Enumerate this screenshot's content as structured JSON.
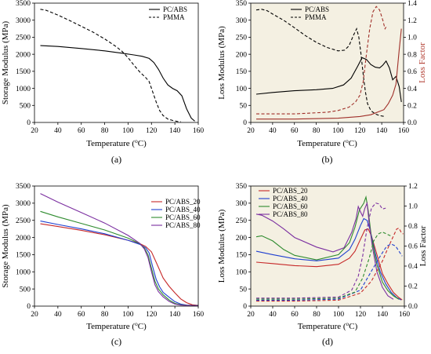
{
  "chart_data": [
    {
      "panel": "(a)",
      "type": "line",
      "xlabel": "Temperature (",
      "xlabel_sup": "o",
      "xlabel_end": "C)",
      "ylabel": "Storage Modulus (MPa)",
      "xlim": [
        20,
        160
      ],
      "ylim": [
        0,
        3500
      ],
      "xticks": [
        20,
        40,
        60,
        80,
        100,
        120,
        140,
        160
      ],
      "yticks": [
        0,
        500,
        1000,
        1500,
        2000,
        2500,
        3000,
        3500
      ],
      "background": "#ffffff",
      "grid": false,
      "legend": "top-right",
      "series": [
        {
          "name": "PC/ABS",
          "color": "#000000",
          "dash": "solid",
          "x": [
            25,
            40,
            60,
            80,
            95,
            105,
            112,
            118,
            122,
            126,
            130,
            134,
            138,
            142,
            146,
            150,
            154,
            157
          ],
          "y": [
            2255,
            2230,
            2170,
            2100,
            2030,
            1980,
            1940,
            1880,
            1760,
            1560,
            1300,
            1100,
            1000,
            930,
            780,
            400,
            130,
            40
          ]
        },
        {
          "name": "PMMA",
          "color": "#000000",
          "dash": "dashed",
          "x": [
            25,
            30,
            40,
            50,
            60,
            70,
            80,
            90,
            95,
            100,
            105,
            110,
            115,
            118,
            121,
            124,
            127,
            130,
            134,
            138,
            142,
            145
          ],
          "y": [
            3320,
            3290,
            3150,
            2990,
            2820,
            2650,
            2450,
            2220,
            2080,
            1900,
            1680,
            1480,
            1320,
            1200,
            900,
            600,
            350,
            200,
            100,
            60,
            30,
            20
          ]
        }
      ]
    },
    {
      "panel": "(b)",
      "type": "line",
      "xlabel": "Temperature (",
      "xlabel_sup": "o",
      "xlabel_end": "C)",
      "ylabel": "Loss Modulus (MPa)",
      "y2label": "Loss Factor",
      "xlim": [
        20,
        160
      ],
      "ylim": [
        0,
        350
      ],
      "y2lim": [
        0,
        1.4
      ],
      "xticks": [
        20,
        40,
        60,
        80,
        100,
        120,
        140,
        160
      ],
      "yticks": [
        0,
        50,
        100,
        150,
        200,
        250,
        300,
        350
      ],
      "y2ticks": [
        0.0,
        0.2,
        0.4,
        0.6,
        0.8,
        1.0,
        1.2,
        1.4
      ],
      "background": "#f4f0e2",
      "grid": false,
      "legend": "top-center",
      "series": [
        {
          "name": "PC/ABS",
          "axis": "y",
          "color": "#000000",
          "dash": "solid",
          "x": [
            25,
            40,
            60,
            80,
            95,
            105,
            112,
            118,
            122,
            126,
            130,
            134,
            138,
            141,
            144,
            147,
            150,
            153,
            156,
            158
          ],
          "y": [
            83,
            88,
            93,
            96,
            100,
            110,
            130,
            165,
            190,
            185,
            170,
            162,
            160,
            168,
            180,
            160,
            125,
            135,
            105,
            60
          ]
        },
        {
          "name": "PMMA",
          "axis": "y",
          "color": "#000000",
          "dash": "dashed",
          "x": [
            25,
            30,
            35,
            40,
            50,
            60,
            70,
            80,
            90,
            100,
            106,
            110,
            114,
            117,
            119,
            121,
            123,
            125,
            127,
            130,
            134,
            138,
            142
          ],
          "y": [
            330,
            332,
            328,
            318,
            300,
            278,
            255,
            235,
            220,
            210,
            212,
            225,
            255,
            275,
            250,
            200,
            140,
            90,
            55,
            35,
            25,
            20,
            18
          ]
        },
        {
          "name": "",
          "axis": "y2",
          "color": "#a0302a",
          "dash": "solid",
          "x": [
            25,
            60,
            100,
            120,
            130,
            138,
            142,
            146,
            150,
            153,
            156,
            158
          ],
          "y": [
            0.04,
            0.04,
            0.05,
            0.07,
            0.09,
            0.13,
            0.15,
            0.22,
            0.32,
            0.45,
            0.85,
            1.1
          ]
        },
        {
          "name": "",
          "axis": "y2",
          "color": "#a0302a",
          "dash": "dashed",
          "x": [
            25,
            60,
            90,
            100,
            110,
            116,
            120,
            123,
            126,
            129,
            132,
            135,
            138,
            141,
            143,
            144
          ],
          "y": [
            0.1,
            0.1,
            0.12,
            0.14,
            0.18,
            0.24,
            0.32,
            0.48,
            0.8,
            1.1,
            1.3,
            1.36,
            1.32,
            1.2,
            1.1,
            1.12
          ]
        }
      ]
    },
    {
      "panel": "(c)",
      "type": "line",
      "xlabel": "Temperature (",
      "xlabel_sup": "o",
      "xlabel_end": "C)",
      "ylabel": "Storage Modulus (MPa)",
      "xlim": [
        20,
        160
      ],
      "ylim": [
        0,
        3500
      ],
      "xticks": [
        20,
        40,
        60,
        80,
        100,
        120,
        140,
        160
      ],
      "yticks": [
        0,
        500,
        1000,
        1500,
        2000,
        2500,
        3000,
        3500
      ],
      "background": "#ffffff",
      "grid": false,
      "legend": "top-right",
      "series": [
        {
          "name": "PC/ABS_20",
          "color": "#c62828",
          "dash": "solid",
          "x": [
            25,
            40,
            60,
            80,
            100,
            110,
            115,
            120,
            125,
            130,
            135,
            140,
            145,
            150,
            155,
            160
          ],
          "y": [
            2400,
            2320,
            2210,
            2080,
            1920,
            1820,
            1740,
            1580,
            1200,
            820,
            580,
            390,
            210,
            100,
            40,
            20
          ]
        },
        {
          "name": "PC/ABS_40",
          "color": "#1f3fd0",
          "dash": "solid",
          "x": [
            25,
            40,
            60,
            80,
            100,
            110,
            115,
            118,
            121,
            124,
            127,
            130,
            135,
            140,
            145,
            150,
            155,
            160
          ],
          "y": [
            2480,
            2380,
            2250,
            2110,
            1920,
            1800,
            1700,
            1550,
            1150,
            780,
            560,
            400,
            260,
            130,
            60,
            30,
            20,
            15
          ]
        },
        {
          "name": "PC/ABS_60",
          "color": "#2e8b2e",
          "dash": "solid",
          "x": [
            25,
            40,
            60,
            80,
            100,
            110,
            114,
            117,
            120,
            123,
            126,
            130,
            135,
            140,
            145,
            150,
            160
          ],
          "y": [
            2760,
            2600,
            2410,
            2220,
            1980,
            1820,
            1690,
            1500,
            1100,
            720,
            500,
            330,
            180,
            80,
            40,
            25,
            15
          ]
        },
        {
          "name": "PC/ABS_80",
          "color": "#7b2fa0",
          "dash": "solid",
          "x": [
            25,
            40,
            60,
            80,
            100,
            110,
            114,
            117,
            120,
            123,
            126,
            130,
            135,
            140,
            145,
            150,
            160
          ],
          "y": [
            3280,
            3030,
            2730,
            2420,
            2060,
            1830,
            1660,
            1420,
            1000,
            620,
            420,
            270,
            140,
            60,
            30,
            20,
            15
          ]
        }
      ]
    },
    {
      "panel": "(d)",
      "type": "line",
      "xlabel": "Temperature (",
      "xlabel_sup": "o",
      "xlabel_end": "C)",
      "ylabel": "Loss Modulus (MPa)",
      "y2label": "Loss Factor",
      "xlim": [
        20,
        160
      ],
      "ylim": [
        0,
        350
      ],
      "y2lim": [
        0,
        1.2
      ],
      "xticks": [
        20,
        40,
        60,
        80,
        100,
        120,
        140,
        160
      ],
      "yticks": [
        0,
        50,
        100,
        150,
        200,
        250,
        300,
        350
      ],
      "y2ticks": [
        0.0,
        0.2,
        0.4,
        0.6,
        0.8,
        1.0,
        1.2
      ],
      "background": "#f4f0e2",
      "grid": false,
      "legend": "top-left",
      "series": [
        {
          "name": "PC/ABS_20",
          "axis": "y",
          "color": "#c62828",
          "dash": "solid",
          "x": [
            25,
            40,
            60,
            80,
            100,
            110,
            115,
            120,
            124,
            127,
            130,
            135,
            140,
            145,
            150,
            155,
            158
          ],
          "y": [
            128,
            124,
            118,
            115,
            122,
            140,
            160,
            195,
            222,
            225,
            205,
            150,
            95,
            65,
            40,
            25,
            18
          ]
        },
        {
          "name": "PC/ABS_40",
          "axis": "y",
          "color": "#1f3fd0",
          "dash": "solid",
          "x": [
            25,
            40,
            60,
            80,
            100,
            110,
            115,
            120,
            123,
            126,
            129,
            133,
            138,
            143,
            148,
            153,
            157
          ],
          "y": [
            160,
            150,
            138,
            132,
            140,
            165,
            195,
            235,
            255,
            250,
            220,
            160,
            100,
            65,
            40,
            25,
            18
          ]
        },
        {
          "name": "PC/ABS_60",
          "axis": "y",
          "color": "#2e8b2e",
          "dash": "solid",
          "x": [
            25,
            30,
            40,
            50,
            60,
            80,
            100,
            110,
            115,
            119,
            121,
            123,
            125,
            127,
            130,
            135,
            140,
            145,
            150,
            155
          ],
          "y": [
            202,
            205,
            190,
            165,
            148,
            135,
            150,
            185,
            230,
            280,
            290,
            300,
            318,
            280,
            200,
            120,
            70,
            45,
            30,
            20
          ]
        },
        {
          "name": "PC/ABS_80",
          "axis": "y",
          "color": "#7b2fa0",
          "dash": "solid",
          "x": [
            25,
            30,
            40,
            50,
            60,
            80,
            95,
            105,
            112,
            116,
            118,
            120,
            122,
            124,
            126,
            128,
            131,
            135,
            140,
            145,
            150
          ],
          "y": [
            268,
            265,
            248,
            225,
            200,
            172,
            158,
            170,
            215,
            255,
            290,
            275,
            262,
            285,
            300,
            240,
            170,
            100,
            55,
            30,
            20
          ]
        },
        {
          "name": "",
          "axis": "y2",
          "color": "#c62828",
          "dash": "dashed",
          "x": [
            25,
            60,
            100,
            120,
            130,
            140,
            145,
            150,
            153,
            155,
            157,
            159
          ],
          "y": [
            0.05,
            0.05,
            0.06,
            0.13,
            0.25,
            0.45,
            0.58,
            0.7,
            0.77,
            0.78,
            0.74,
            0.72
          ]
        },
        {
          "name": "",
          "axis": "y2",
          "color": "#1f3fd0",
          "dash": "dashed",
          "x": [
            25,
            60,
            100,
            120,
            130,
            138,
            144,
            148,
            152,
            155,
            158
          ],
          "y": [
            0.06,
            0.06,
            0.07,
            0.16,
            0.35,
            0.5,
            0.6,
            0.62,
            0.6,
            0.55,
            0.5
          ]
        },
        {
          "name": "",
          "axis": "y2",
          "color": "#2e8b2e",
          "dash": "dashed",
          "x": [
            25,
            60,
            100,
            115,
            122,
            128,
            132,
            136,
            140,
            144,
            148
          ],
          "y": [
            0.07,
            0.07,
            0.08,
            0.14,
            0.28,
            0.48,
            0.65,
            0.72,
            0.74,
            0.72,
            0.7
          ]
        },
        {
          "name": "",
          "axis": "y2",
          "color": "#7b2fa0",
          "dash": "dashed",
          "x": [
            25,
            60,
            100,
            112,
            118,
            122,
            126,
            130,
            134,
            137,
            140,
            143
          ],
          "y": [
            0.08,
            0.08,
            0.09,
            0.16,
            0.3,
            0.5,
            0.78,
            0.98,
            1.03,
            1.02,
            0.97,
            0.98
          ]
        }
      ]
    }
  ]
}
